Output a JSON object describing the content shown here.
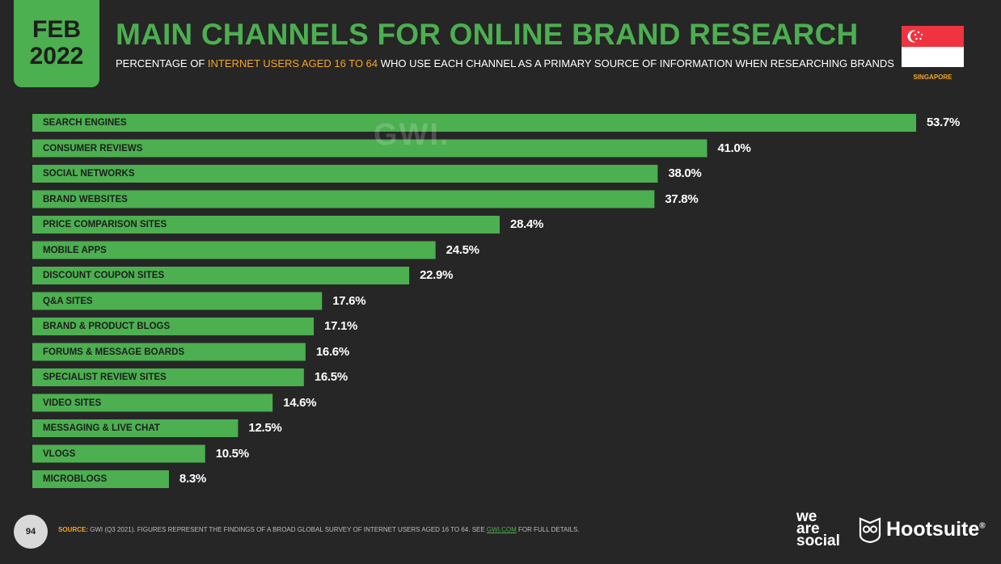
{
  "header": {
    "month": "FEB",
    "year": "2022",
    "title": "MAIN CHANNELS FOR ONLINE BRAND RESEARCH",
    "subtitle_pre": "PERCENTAGE OF ",
    "subtitle_highlight": "INTERNET USERS AGED 16 TO 64",
    "subtitle_post": " WHO USE EACH CHANNEL AS A PRIMARY SOURCE OF INFORMATION WHEN RESEARCHING BRANDS",
    "country": "SINGAPORE",
    "watermark": "GWI."
  },
  "colors": {
    "accent": "#4caf50",
    "highlight": "#f5a623",
    "background": "#262626"
  },
  "chart_data": {
    "type": "bar",
    "orientation": "horizontal",
    "categories": [
      "SEARCH ENGINES",
      "CONSUMER REVIEWS",
      "SOCIAL NETWORKS",
      "BRAND WEBSITES",
      "PRICE COMPARISON SITES",
      "MOBILE APPS",
      "DISCOUNT COUPON SITES",
      "Q&A SITES",
      "BRAND & PRODUCT BLOGS",
      "FORUMS & MESSAGE BOARDS",
      "SPECIALIST REVIEW SITES",
      "VIDEO SITES",
      "MESSAGING & LIVE CHAT",
      "VLOGS",
      "MICROBLOGS"
    ],
    "values": [
      53.7,
      41.0,
      38.0,
      37.8,
      28.4,
      24.5,
      22.9,
      17.6,
      17.1,
      16.6,
      16.5,
      14.6,
      12.5,
      10.5,
      8.3
    ],
    "value_labels": [
      "53.7%",
      "41.0%",
      "38.0%",
      "37.8%",
      "28.4%",
      "24.5%",
      "22.9%",
      "17.6%",
      "17.1%",
      "16.6%",
      "16.5%",
      "14.6%",
      "12.5%",
      "10.5%",
      "8.3%"
    ],
    "unit": "%",
    "xlim": [
      0,
      53.7
    ],
    "grid": false,
    "legend": "none"
  },
  "footer": {
    "page_number": "94",
    "source_label": "SOURCE:",
    "source_text": " GWI (Q3 2021). FIGURES REPRESENT THE FINDINGS OF A BROAD GLOBAL SURVEY OF INTERNET USERS AGED 16 TO 64. SEE ",
    "source_link": "GWI.COM",
    "source_end": " FOR FULL DETAILS.",
    "brand1": "we are social",
    "brand1_line1": "we",
    "brand1_line2": "are",
    "brand1_line3": "social",
    "brand2": "Hootsuite",
    "brand2_mark": "®"
  }
}
